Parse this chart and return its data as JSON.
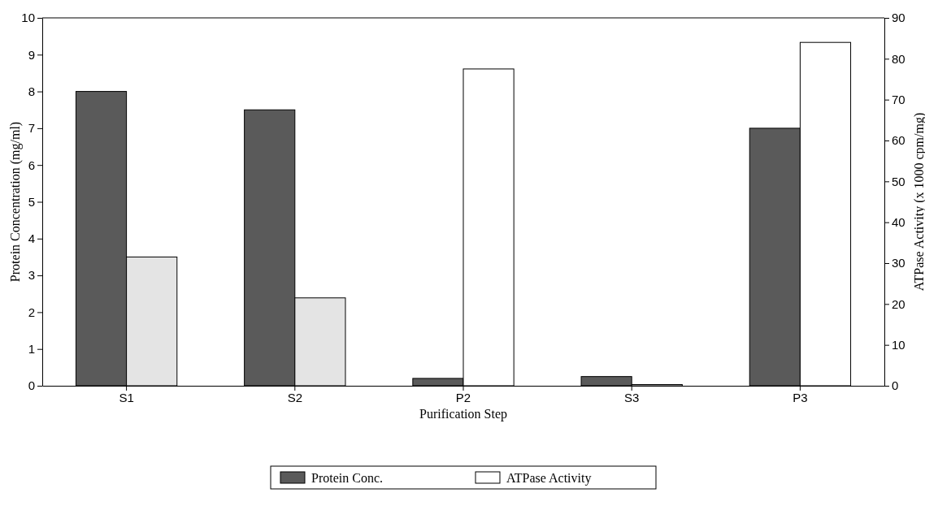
{
  "chart_data": {
    "type": "bar",
    "xlabel": "Purification Step",
    "ylabel": "Protein Concentration (mg/ml)",
    "y2label": "ATPase Activity (x 1000 cpm/mg)",
    "categories": [
      "S1",
      "S2",
      "P2",
      "S3",
      "P3"
    ],
    "series": [
      {
        "name": "Protein Conc.",
        "color": "#5a5a5a",
        "values": [
          8.0,
          7.5,
          0.2,
          0.25,
          7.0
        ]
      },
      {
        "name": "ATPase Activity",
        "color": "#ffffff",
        "colors": [
          "#e4e4e4",
          "#e4e4e4",
          "#ffffff",
          "#ffffff",
          "#ffffff"
        ],
        "axis": "y2",
        "values": [
          31.5,
          21.5,
          77.5,
          0.3,
          84
        ]
      }
    ],
    "ylim": [
      0,
      10
    ],
    "yticks": [
      0,
      1,
      2,
      3,
      4,
      5,
      6,
      7,
      8,
      9,
      10
    ],
    "y2lim": [
      0,
      90
    ],
    "y2ticks": [
      0,
      10,
      20,
      30,
      40,
      50,
      60,
      70,
      80,
      90
    ],
    "legend": "bottom",
    "grid": false
  }
}
